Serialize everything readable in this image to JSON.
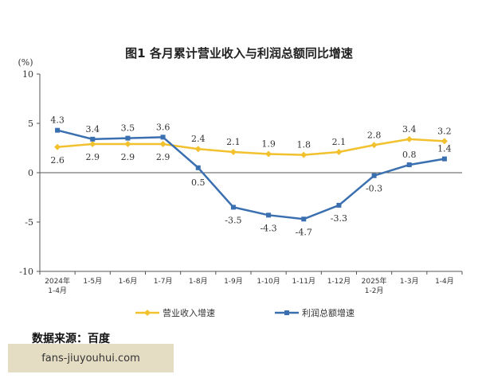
{
  "source_text": "数据来源：百度",
  "watermark": "fans-jiuyouhui.com",
  "chart_data": {
    "type": "line",
    "title": "图1  各月累计营业收入与利润总额同比增速",
    "unit_label": "(%)",
    "ylim": [
      -10,
      10
    ],
    "yticks": [
      "10",
      "5",
      "0",
      "-5",
      "-10"
    ],
    "ytick_values": [
      10,
      5,
      0,
      -5,
      -10
    ],
    "categories": [
      "2024年 1-4月",
      "1-5月",
      "1-6月",
      "1-7月",
      "1-8月",
      "1-9月",
      "1-10月",
      "1-11月",
      "1-12月",
      "2025年 1-2月",
      "1-3月",
      "1-4月"
    ],
    "category_lines": [
      [
        "2024年",
        "1-4月"
      ],
      [
        "1-5月"
      ],
      [
        "1-6月"
      ],
      [
        "1-7月"
      ],
      [
        "1-8月"
      ],
      [
        "1-9月"
      ],
      [
        "1-10月"
      ],
      [
        "1-11月"
      ],
      [
        "1-12月"
      ],
      [
        "2025年",
        "1-2月"
      ],
      [
        "1-3月"
      ],
      [
        "1-4月"
      ]
    ],
    "series": [
      {
        "name": "营业收入增速",
        "color": "#f2c12e",
        "values": [
          2.6,
          2.9,
          2.9,
          2.9,
          2.4,
          2.1,
          1.9,
          1.8,
          2.1,
          2.8,
          3.4,
          3.2
        ]
      },
      {
        "name": "利润总额增速",
        "color": "#3a6fb0",
        "values": [
          4.3,
          3.4,
          3.5,
          3.6,
          0.5,
          -3.5,
          -4.3,
          -4.7,
          -3.3,
          -0.3,
          0.8,
          1.4
        ]
      }
    ],
    "grid": false,
    "legend_position": "bottom"
  }
}
